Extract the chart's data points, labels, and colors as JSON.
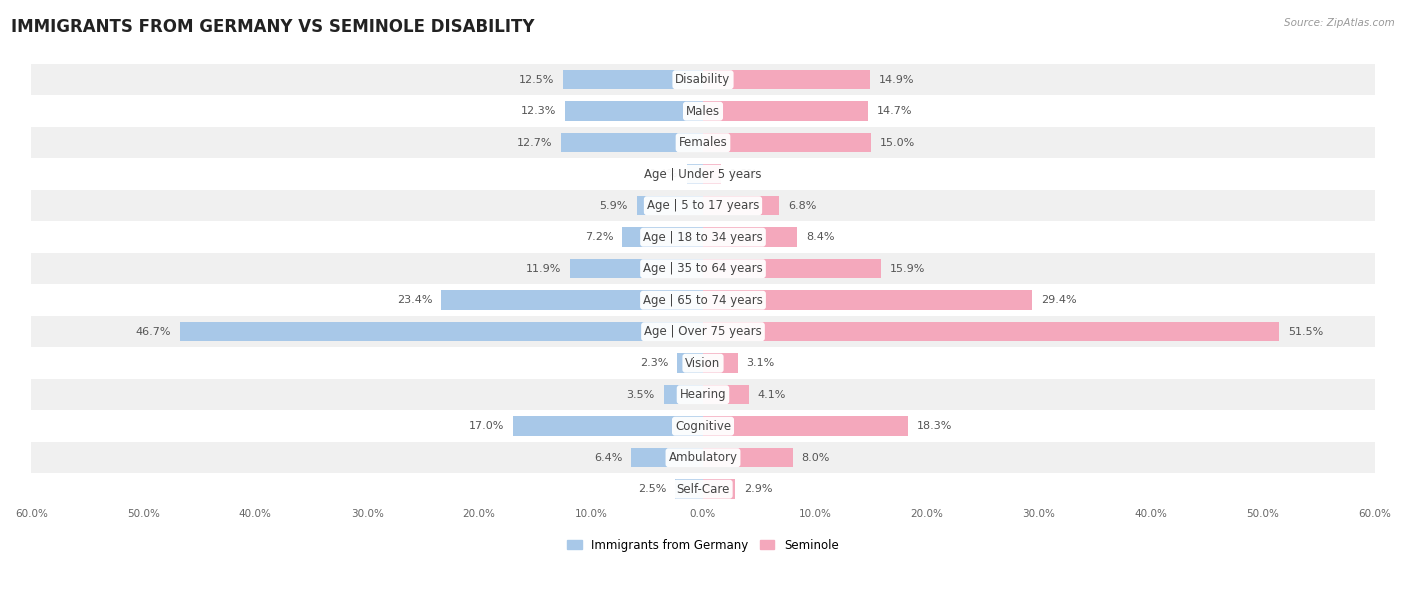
{
  "title": "IMMIGRANTS FROM GERMANY VS SEMINOLE DISABILITY",
  "source": "Source: ZipAtlas.com",
  "categories": [
    "Disability",
    "Males",
    "Females",
    "Age | Under 5 years",
    "Age | 5 to 17 years",
    "Age | 18 to 34 years",
    "Age | 35 to 64 years",
    "Age | 65 to 74 years",
    "Age | Over 75 years",
    "Vision",
    "Hearing",
    "Cognitive",
    "Ambulatory",
    "Self-Care"
  ],
  "left_values": [
    12.5,
    12.3,
    12.7,
    1.4,
    5.9,
    7.2,
    11.9,
    23.4,
    46.7,
    2.3,
    3.5,
    17.0,
    6.4,
    2.5
  ],
  "right_values": [
    14.9,
    14.7,
    15.0,
    1.6,
    6.8,
    8.4,
    15.9,
    29.4,
    51.5,
    3.1,
    4.1,
    18.3,
    8.0,
    2.9
  ],
  "left_color": "#a8c8e8",
  "right_color": "#f4a8bc",
  "left_label": "Immigrants from Germany",
  "right_label": "Seminole",
  "axis_max": 60.0,
  "bg_color": "#ffffff",
  "row_bg_odd": "#f0f0f0",
  "row_bg_even": "#ffffff",
  "title_fontsize": 12,
  "label_fontsize": 8.5,
  "value_fontsize": 8,
  "bar_height": 0.62,
  "x_tick_step": 10
}
